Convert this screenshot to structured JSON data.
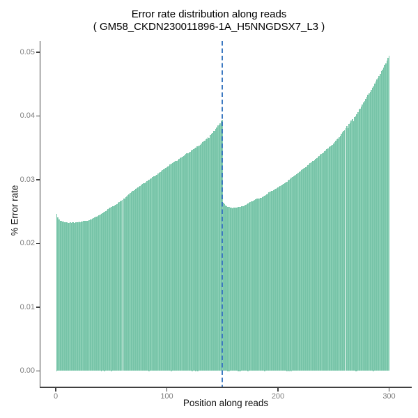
{
  "chart_data": {
    "type": "bar",
    "title": "Error rate distribution along reads",
    "subtitle": "( GM58_CKDN230011896-1A_H5NNGDSX7_L3 )",
    "xlabel": "Position along reads",
    "ylabel": "% Error rate",
    "xlim": [
      0,
      300
    ],
    "ylim": [
      0,
      0.05
    ],
    "x_ticks": [
      {
        "label": "0",
        "value": 0
      },
      {
        "label": "100",
        "value": 100
      },
      {
        "label": "200",
        "value": 200
      },
      {
        "label": "300",
        "value": 300
      }
    ],
    "y_ticks": [
      {
        "label": "0.00",
        "value": 0.0
      },
      {
        "label": "0.01",
        "value": 0.01
      },
      {
        "label": "0.02",
        "value": 0.02
      },
      {
        "label": "0.03",
        "value": 0.03
      },
      {
        "label": "0.04",
        "value": 0.04
      },
      {
        "label": "0.05",
        "value": 0.05
      }
    ],
    "grid": "off",
    "legend": "none",
    "vline": {
      "x": 150,
      "style": "dashed",
      "color": "#3D79C1"
    },
    "positions": {
      "start": 1,
      "end": 300,
      "step": 1
    },
    "values": [
      0.0247,
      0.0241,
      0.0238,
      0.0236,
      0.0235,
      0.0234,
      0.0234,
      0.0233,
      0.0233,
      0.0233,
      0.0232,
      0.0232,
      0.0233,
      0.0232,
      0.0233,
      0.0233,
      0.0232,
      0.0233,
      0.0233,
      0.0233,
      0.0234,
      0.0233,
      0.0234,
      0.0234,
      0.0235,
      0.0235,
      0.0235,
      0.0236,
      0.0236,
      0.0237,
      0.0238,
      0.0238,
      0.0239,
      0.024,
      0.0241,
      0.0242,
      0.0242,
      0.0243,
      0.0244,
      0.0245,
      0.0247,
      0.0248,
      0.0249,
      0.025,
      0.0251,
      0.0252,
      0.0254,
      0.0255,
      0.0256,
      0.0257,
      0.0258,
      0.0259,
      0.026,
      0.0261,
      0.0262,
      0.0264,
      0.0265,
      0.0266,
      0.0267,
      0.0268,
      0.027,
      0.0271,
      0.0273,
      0.0274,
      0.0276,
      0.0277,
      0.0279,
      0.028,
      0.0282,
      0.0283,
      0.0284,
      0.0286,
      0.0287,
      0.0288,
      0.0289,
      0.029,
      0.0292,
      0.0293,
      0.0294,
      0.0295,
      0.0296,
      0.0298,
      0.0299,
      0.03,
      0.0301,
      0.0302,
      0.0304,
      0.0305,
      0.0306,
      0.0307,
      0.0308,
      0.031,
      0.0311,
      0.0312,
      0.0313,
      0.0315,
      0.0316,
      0.0317,
      0.0319,
      0.032,
      0.0321,
      0.0322,
      0.0324,
      0.0325,
      0.0326,
      0.0327,
      0.0328,
      0.0329,
      0.033,
      0.0331,
      0.0333,
      0.0334,
      0.0335,
      0.0336,
      0.0337,
      0.0338,
      0.034,
      0.0341,
      0.0342,
      0.0343,
      0.0344,
      0.0346,
      0.0347,
      0.0348,
      0.0349,
      0.035,
      0.0352,
      0.0353,
      0.0354,
      0.0355,
      0.0357,
      0.0359,
      0.036,
      0.0361,
      0.0363,
      0.0365,
      0.0367,
      0.0366,
      0.037,
      0.0372,
      0.0373,
      0.0376,
      0.0377,
      0.038,
      0.0382,
      0.0385,
      0.0386,
      0.0389,
      0.0392,
      0.0394,
      0.0264,
      0.0262,
      0.026,
      0.0258,
      0.0257,
      0.0257,
      0.0256,
      0.0256,
      0.0255,
      0.0256,
      0.0256,
      0.0256,
      0.0256,
      0.0257,
      0.0257,
      0.0257,
      0.0258,
      0.0259,
      0.0259,
      0.026,
      0.0261,
      0.0262,
      0.0263,
      0.0264,
      0.0265,
      0.0266,
      0.0266,
      0.0267,
      0.0268,
      0.0269,
      0.027,
      0.027,
      0.0271,
      0.0272,
      0.0272,
      0.0273,
      0.0274,
      0.0275,
      0.0276,
      0.0277,
      0.0278,
      0.028,
      0.0281,
      0.0282,
      0.0283,
      0.0284,
      0.0285,
      0.0286,
      0.0287,
      0.0288,
      0.0289,
      0.029,
      0.0291,
      0.0292,
      0.0293,
      0.0294,
      0.0296,
      0.0297,
      0.0299,
      0.03,
      0.0301,
      0.0303,
      0.0304,
      0.0306,
      0.0307,
      0.0308,
      0.0309,
      0.0311,
      0.0312,
      0.0313,
      0.0315,
      0.0316,
      0.0317,
      0.0319,
      0.032,
      0.0321,
      0.0323,
      0.0324,
      0.0326,
      0.0327,
      0.0329,
      0.033,
      0.0331,
      0.0333,
      0.0334,
      0.0336,
      0.0337,
      0.0339,
      0.034,
      0.0342,
      0.0343,
      0.0345,
      0.0346,
      0.0348,
      0.0349,
      0.0351,
      0.0352,
      0.0354,
      0.0355,
      0.0357,
      0.0359,
      0.0361,
      0.0363,
      0.0365,
      0.0367,
      0.0369,
      0.0372,
      0.0374,
      0.0376,
      0.0378,
      0.0381,
      0.0384,
      0.0381,
      0.0387,
      0.039,
      0.0393,
      0.0395,
      0.0392,
      0.0398,
      0.04,
      0.0403,
      0.0406,
      0.041,
      0.0412,
      0.0415,
      0.0418,
      0.0421,
      0.0424,
      0.0427,
      0.043,
      0.0433,
      0.0436,
      0.0438,
      0.0441,
      0.0444,
      0.0447,
      0.0451,
      0.0454,
      0.0457,
      0.046,
      0.0463,
      0.0466,
      0.047,
      0.0473,
      0.0476,
      0.048,
      0.0483,
      0.0487,
      0.0491,
      0.0495
    ],
    "style": {
      "bar_fill": "#8CD0B6",
      "bar_edge": "#69BD9E",
      "vline_color": "#3D79C1",
      "axis_color": "#404040",
      "tick_label_color": "#7D7D7D"
    }
  }
}
